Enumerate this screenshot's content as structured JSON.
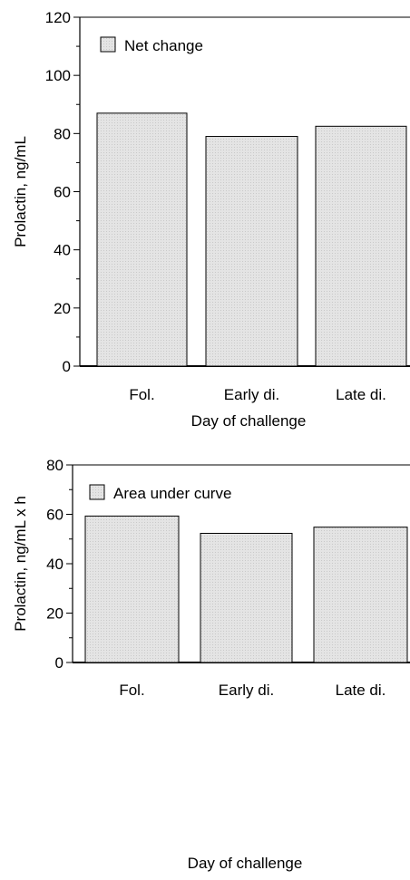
{
  "chart_data": [
    {
      "type": "bar",
      "categories": [
        "Fol.",
        "Early di.",
        "Late di."
      ],
      "series": [
        {
          "name": "Net change",
          "values": [
            87,
            79,
            82.5
          ]
        }
      ],
      "xlabel": "Day of challenge",
      "ylabel": "Prolactin, ng/mL",
      "ylim": [
        0,
        120
      ],
      "yticks": [
        "0",
        "20",
        "40",
        "60",
        "80",
        "100",
        "120"
      ],
      "grid": false,
      "legend_position": "top-left",
      "bar_fill": "#e6e6e6",
      "bar_stroke": "#000000"
    },
    {
      "type": "bar",
      "categories": [
        "Fol.",
        "Early di.",
        "Late di."
      ],
      "series": [
        {
          "name": "Area under curve",
          "values": [
            59.3,
            52.3,
            54.8
          ]
        }
      ],
      "xlabel": "Day of challenge",
      "ylabel": "Prolactin, ng/mL x h",
      "ylim": [
        0,
        80
      ],
      "yticks": [
        "0",
        "20",
        "40",
        "60",
        "80"
      ],
      "grid": false,
      "legend_position": "top-left",
      "bar_fill": "#e6e6e6",
      "bar_stroke": "#000000"
    }
  ]
}
